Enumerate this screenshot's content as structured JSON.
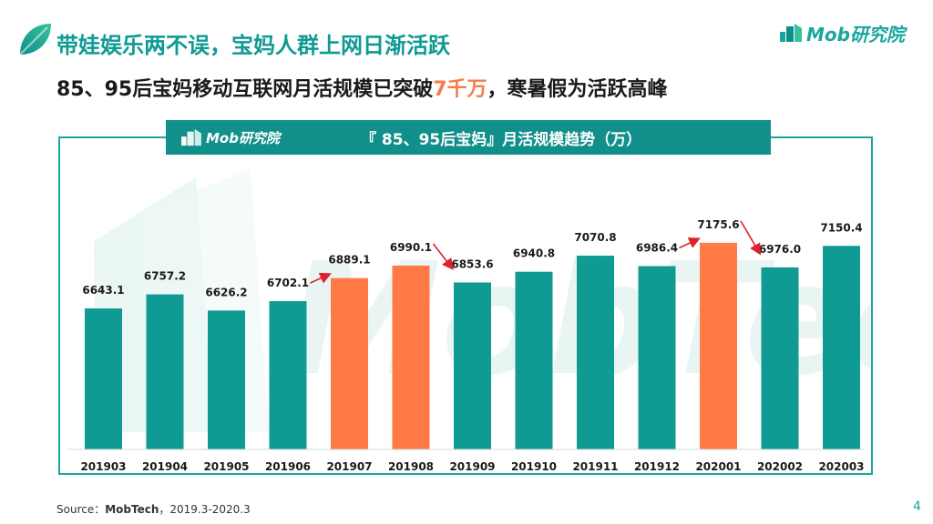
{
  "header": {
    "title": "带娃娱乐两不误，宝妈人群上网日渐活跃",
    "subtitle_prefix": "85、95后宝妈移动互联网月活规模已突破",
    "subtitle_highlight": "7千万",
    "subtitle_suffix": "，寒暑假为活跃高峰"
  },
  "brand": {
    "text": "Mob研究院"
  },
  "chart_header": {
    "brand_text": "Mob研究院",
    "title": "『 85、95后宝妈』月活规模趋势（万）"
  },
  "watermark": {
    "text": "MobTech"
  },
  "colors": {
    "teal": "#0f9a94",
    "orange": "#ff7a45",
    "arrow": "#e0202a",
    "accent_text": "#f47d4a"
  },
  "chart_data": {
    "type": "bar",
    "title": "『 85、95后宝妈』月活规模趋势（万）",
    "xlabel": "",
    "ylabel": "",
    "ylim": [
      5500,
      7300
    ],
    "grid": false,
    "categories": [
      "201903",
      "201904",
      "201905",
      "201906",
      "201907",
      "201908",
      "201909",
      "201910",
      "201911",
      "201912",
      "202001",
      "202002",
      "202003"
    ],
    "values": [
      6643.1,
      6757.2,
      6626.2,
      6702.1,
      6889.1,
      6990.1,
      6853.6,
      6940.8,
      7070.8,
      6986.4,
      7175.6,
      6976.0,
      7150.4
    ],
    "value_labels": [
      "6643.1",
      "6757.2",
      "6626.2",
      "6702.1",
      "6889.1",
      "6990.1",
      "6853.6",
      "6940.8",
      "7070.8",
      "6986.4",
      "7175.6",
      "6976.0",
      "7150.4"
    ],
    "highlight": [
      "201907",
      "201908",
      "202001"
    ],
    "arrows": [
      {
        "from": "201906",
        "to": "201907",
        "direction": "up"
      },
      {
        "from": "201908",
        "to": "201909",
        "direction": "down"
      },
      {
        "from": "201912",
        "to": "202001",
        "direction": "up"
      },
      {
        "from": "202001",
        "to": "202002",
        "direction": "down"
      }
    ]
  },
  "footer": {
    "source_label": "Source：",
    "source_name": "MobTech",
    "source_range": "，2019.3-2020.3",
    "page_number": "4"
  }
}
